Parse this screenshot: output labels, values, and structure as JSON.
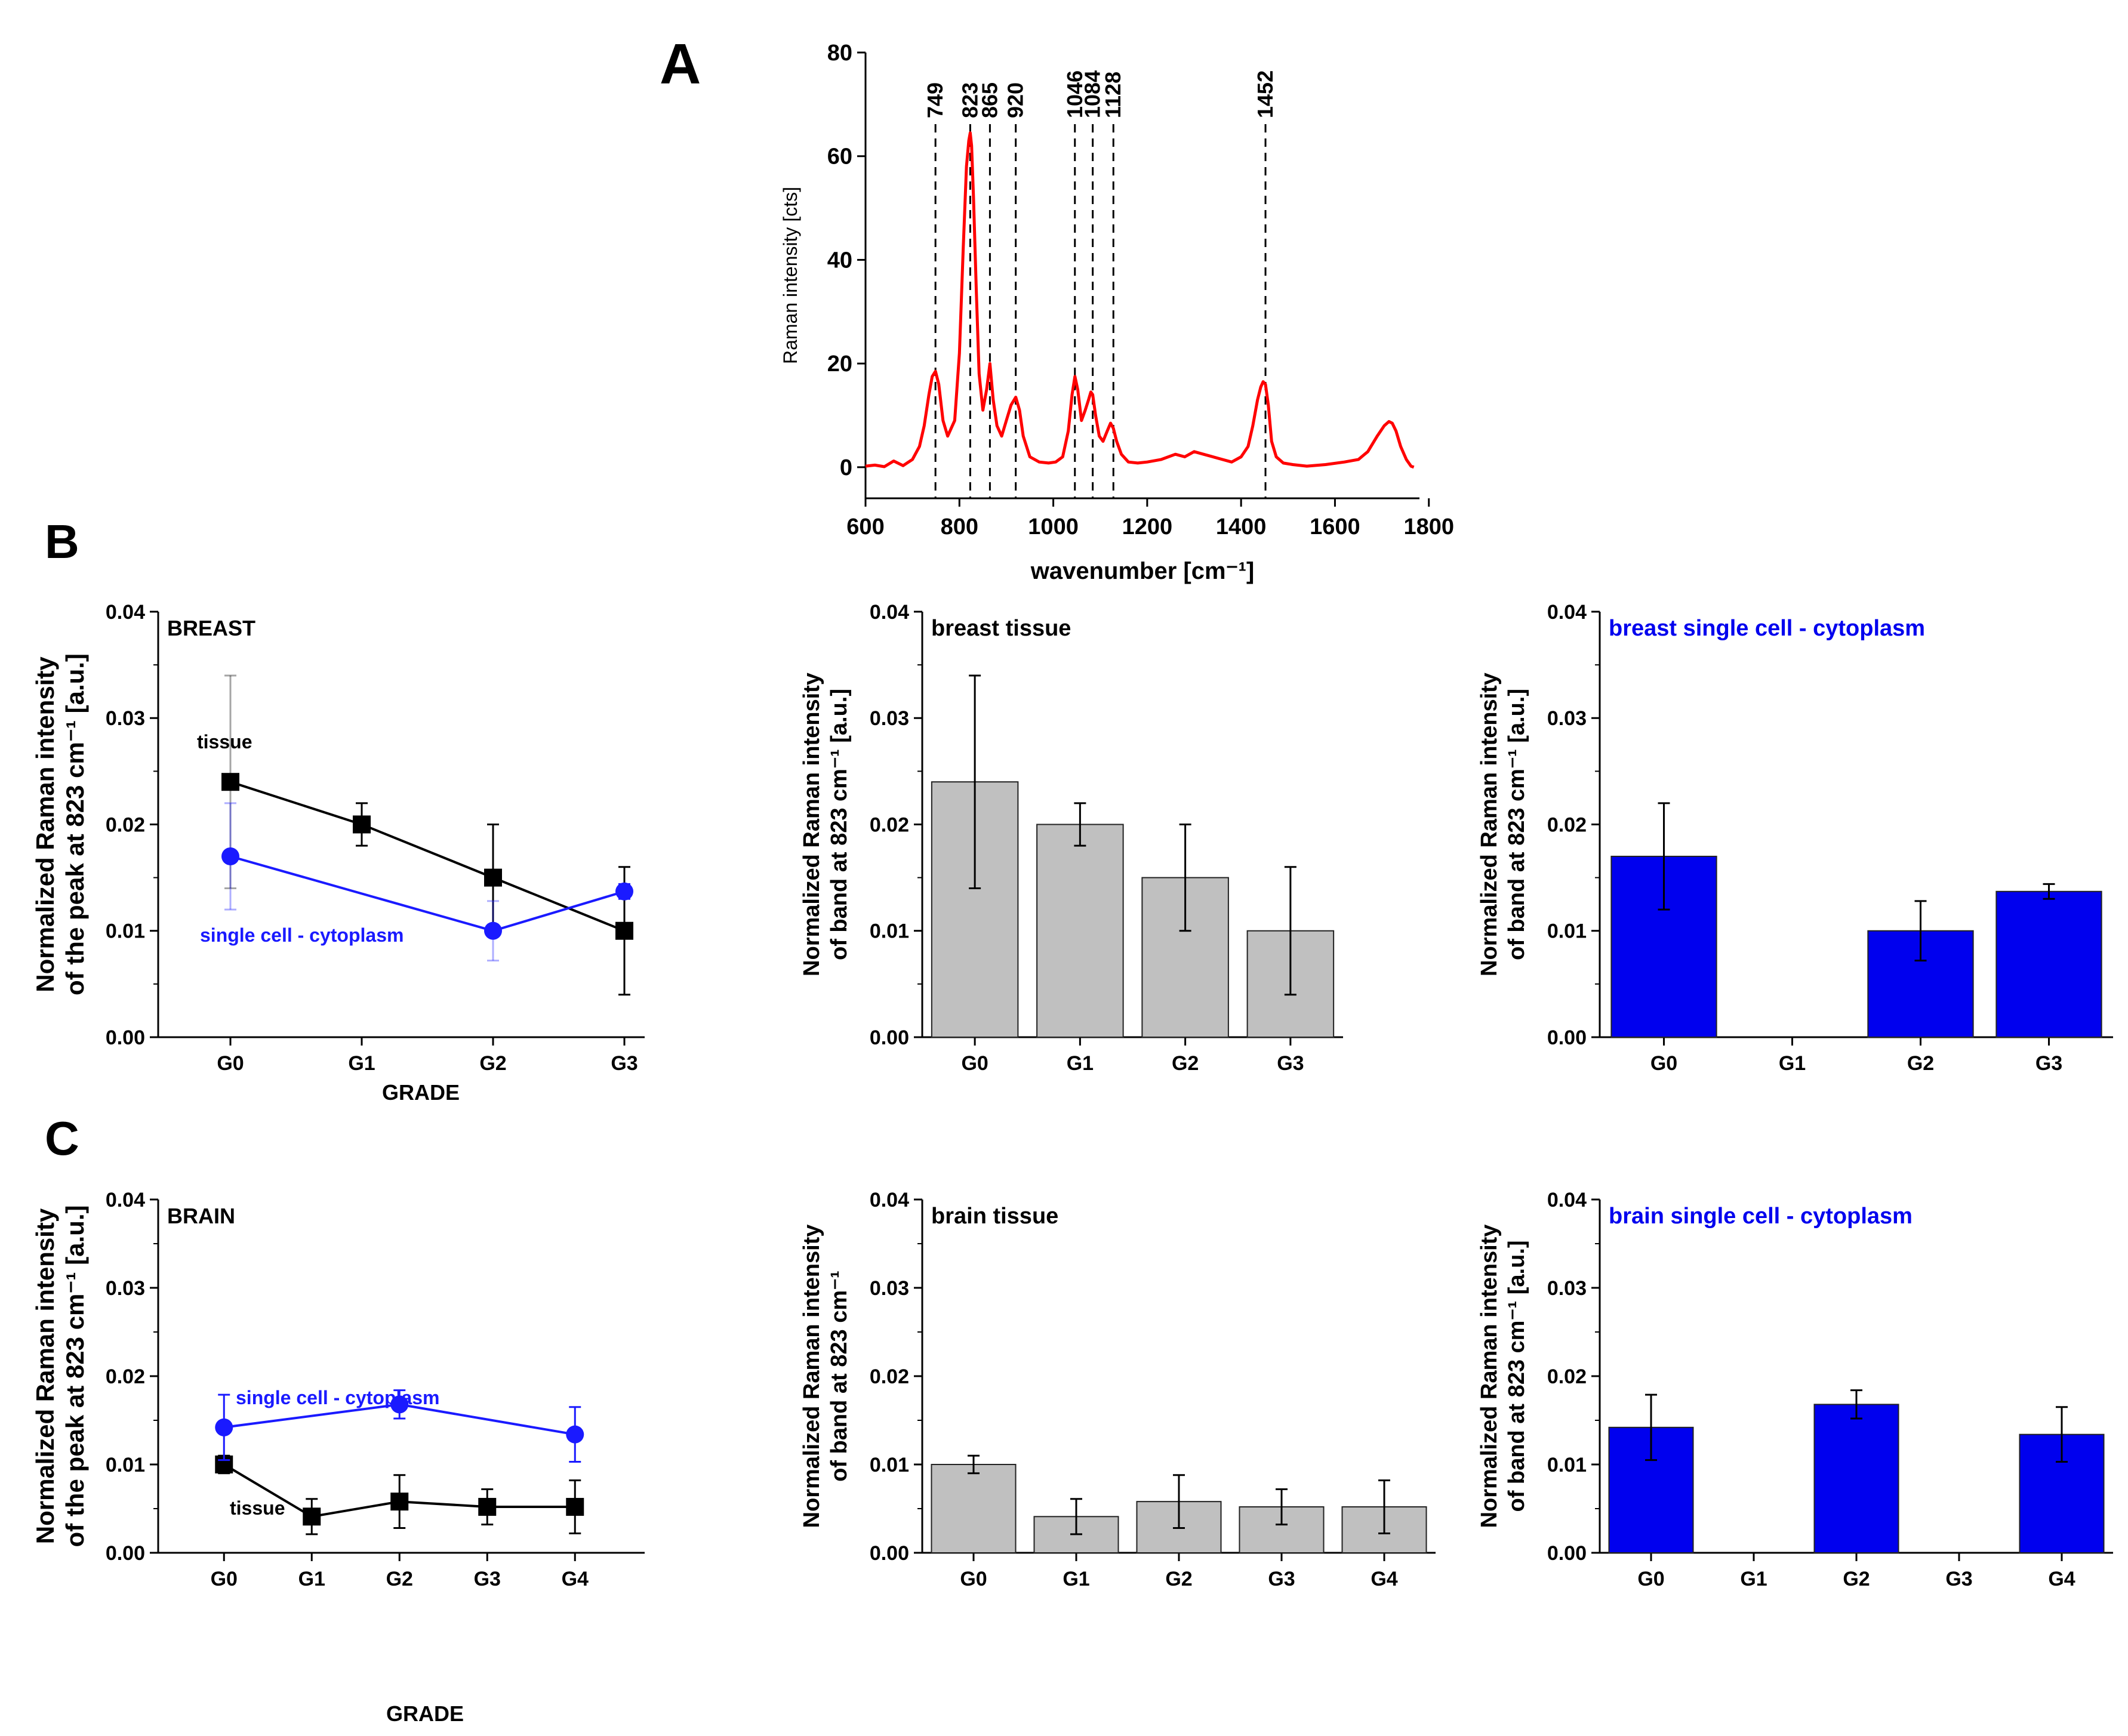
{
  "panel_labels": [
    "A",
    "B",
    "C"
  ],
  "colors": {
    "spectrum": "#ff0000",
    "tissue_line": "#000000",
    "cell_line": "#1a1aff",
    "tissue_bar": "#c0c0c0",
    "cell_bar": "#0000ee"
  },
  "chart_data": [
    {
      "id": "A",
      "type": "line",
      "title": "",
      "xlabel": "wavenumber [cm⁻¹]",
      "ylabel": "Raman intensity [cts]",
      "xlim": [
        600,
        1780
      ],
      "ylim": [
        -6,
        80
      ],
      "xticks": [
        600,
        800,
        1000,
        1200,
        1400,
        1600,
        1800
      ],
      "yticks": [
        0,
        20,
        40,
        60,
        80
      ],
      "peak_labels": [
        "749",
        "823",
        "865",
        "920",
        "1046",
        "1084",
        "1128",
        "1452"
      ],
      "peak_positions": [
        749,
        823,
        865,
        920,
        1046,
        1084,
        1128,
        1452
      ],
      "series": [
        {
          "name": "spectrum",
          "x": [
            600,
            620,
            640,
            660,
            680,
            700,
            715,
            725,
            735,
            742,
            749,
            756,
            765,
            775,
            790,
            800,
            808,
            815,
            820,
            823,
            826,
            830,
            836,
            842,
            850,
            858,
            865,
            872,
            880,
            890,
            900,
            910,
            920,
            928,
            936,
            950,
            970,
            990,
            1005,
            1020,
            1032,
            1040,
            1046,
            1052,
            1060,
            1068,
            1075,
            1080,
            1084,
            1090,
            1098,
            1106,
            1115,
            1122,
            1128,
            1135,
            1145,
            1160,
            1180,
            1200,
            1230,
            1260,
            1280,
            1300,
            1320,
            1340,
            1360,
            1380,
            1400,
            1415,
            1425,
            1435,
            1442,
            1447,
            1452,
            1458,
            1465,
            1475,
            1490,
            1510,
            1540,
            1580,
            1620,
            1650,
            1670,
            1690,
            1705,
            1715,
            1722,
            1730,
            1740,
            1752,
            1762,
            1768
          ],
          "y": [
            0.2,
            0.4,
            0.1,
            1.2,
            0.3,
            1.5,
            4,
            8,
            14,
            17.5,
            18.5,
            16,
            9,
            6,
            9,
            22,
            42,
            58,
            63,
            64.5,
            62,
            52,
            34,
            18,
            11,
            15,
            20,
            13,
            8,
            6,
            9,
            12,
            13.5,
            11,
            6,
            2,
            1,
            0.8,
            1,
            2,
            7,
            14,
            17.5,
            15,
            9,
            11,
            13,
            14.5,
            14,
            10,
            6,
            5,
            7,
            8.5,
            7.5,
            5,
            2.5,
            1,
            0.8,
            1,
            1.5,
            2.5,
            2,
            3,
            2.5,
            2,
            1.5,
            1,
            2,
            4,
            8,
            13,
            15.5,
            16.5,
            16,
            12,
            5,
            2,
            0.8,
            0.5,
            0.2,
            0.5,
            1,
            1.5,
            3,
            6,
            8,
            8.8,
            8.5,
            7,
            4,
            1.5,
            0.2,
            0
          ]
        }
      ]
    },
    {
      "id": "B-line",
      "type": "line",
      "title": "BREAST",
      "xlabel": "GRADE",
      "ylabel_lines": [
        "Normalized Raman intensity",
        "of the peak at 823 cm⁻¹ [a.u.]"
      ],
      "categories": [
        "G0",
        "G1",
        "G2",
        "G3"
      ],
      "ylim": [
        0,
        0.04
      ],
      "yticks": [
        "0.00",
        "0.01",
        "0.02",
        "0.03",
        "0.04"
      ],
      "series": [
        {
          "name": "tissue",
          "label": "tissue",
          "values": [
            0.024,
            0.02,
            0.015,
            0.01
          ],
          "errors": [
            0.01,
            0.002,
            0.005,
            0.006
          ]
        },
        {
          "name": "single cell - cytoplasm",
          "label": "single cell - cytoplasm",
          "values": [
            0.017,
            null,
            0.01,
            0.0137
          ],
          "errors": [
            0.005,
            null,
            0.0028,
            0.0007
          ]
        }
      ]
    },
    {
      "id": "B-tissue",
      "type": "bar",
      "title": "breast tissue",
      "ylabel_lines": [
        "Normalized Raman intensity",
        "of band at 823 cm⁻¹ [a.u.]"
      ],
      "categories": [
        "G0",
        "G1",
        "G2",
        "G3"
      ],
      "values": [
        0.024,
        0.02,
        0.015,
        0.01
      ],
      "errors": [
        0.01,
        0.002,
        0.005,
        0.006
      ],
      "ylim": [
        0,
        0.04
      ],
      "yticks": [
        "0.00",
        "0.01",
        "0.02",
        "0.03",
        "0.04"
      ]
    },
    {
      "id": "B-cell",
      "type": "bar",
      "title": "breast single cell - cytoplasm",
      "ylabel_lines": [
        "Normalized Raman intensity",
        "of band at 823 cm⁻¹ [a.u.]"
      ],
      "categories": [
        "G0",
        "G1",
        "G2",
        "G3"
      ],
      "values": [
        0.017,
        null,
        0.01,
        0.0137
      ],
      "errors": [
        0.005,
        null,
        0.0028,
        0.0007
      ],
      "ylim": [
        0,
        0.04
      ],
      "yticks": [
        "0.00",
        "0.01",
        "0.02",
        "0.03",
        "0.04"
      ]
    },
    {
      "id": "C-line",
      "type": "line",
      "title": "BRAIN",
      "xlabel": "GRADE",
      "ylabel_lines": [
        "Normalized Raman intensity",
        "of the peak at 823 cm⁻¹ [a.u.]"
      ],
      "categories": [
        "G0",
        "G1",
        "G2",
        "G3",
        "G4"
      ],
      "ylim": [
        0,
        0.04
      ],
      "yticks": [
        "0.00",
        "0.01",
        "0.02",
        "0.03",
        "0.04"
      ],
      "series": [
        {
          "name": "tissue",
          "label": "tissue",
          "values": [
            0.01,
            0.0041,
            0.0058,
            0.0052,
            0.0052
          ],
          "errors": [
            0.001,
            0.002,
            0.003,
            0.002,
            0.003
          ]
        },
        {
          "name": "single cell - cytoplasm",
          "label": "single cell - cytoplasm",
          "values": [
            0.0142,
            null,
            0.0168,
            null,
            0.0134
          ],
          "errors": [
            0.0037,
            null,
            0.0016,
            null,
            0.0031
          ]
        }
      ]
    },
    {
      "id": "C-tissue",
      "type": "bar",
      "title": "brain tissue",
      "ylabel_lines": [
        "Normalized Raman intensity",
        "of band at 823 cm⁻¹"
      ],
      "categories": [
        "G0",
        "G1",
        "G2",
        "G3",
        "G4"
      ],
      "values": [
        0.01,
        0.0041,
        0.0058,
        0.0052,
        0.0052
      ],
      "errors": [
        0.001,
        0.002,
        0.003,
        0.002,
        0.003
      ],
      "ylim": [
        0,
        0.04
      ],
      "yticks": [
        "0.00",
        "0.01",
        "0.02",
        "0.03",
        "0.04"
      ]
    },
    {
      "id": "C-cell",
      "type": "bar",
      "title": "brain single cell - cytoplasm",
      "ylabel_lines": [
        "Normalized Raman intensity",
        "of band at 823 cm⁻¹ [a.u.]"
      ],
      "categories": [
        "G0",
        "G1",
        "G2",
        "G3",
        "G4"
      ],
      "values": [
        0.0142,
        null,
        0.0168,
        null,
        0.0134
      ],
      "errors": [
        0.0037,
        null,
        0.0016,
        null,
        0.0031
      ],
      "ylim": [
        0,
        0.04
      ],
      "yticks": [
        "0.00",
        "0.01",
        "0.02",
        "0.03",
        "0.04"
      ]
    }
  ]
}
